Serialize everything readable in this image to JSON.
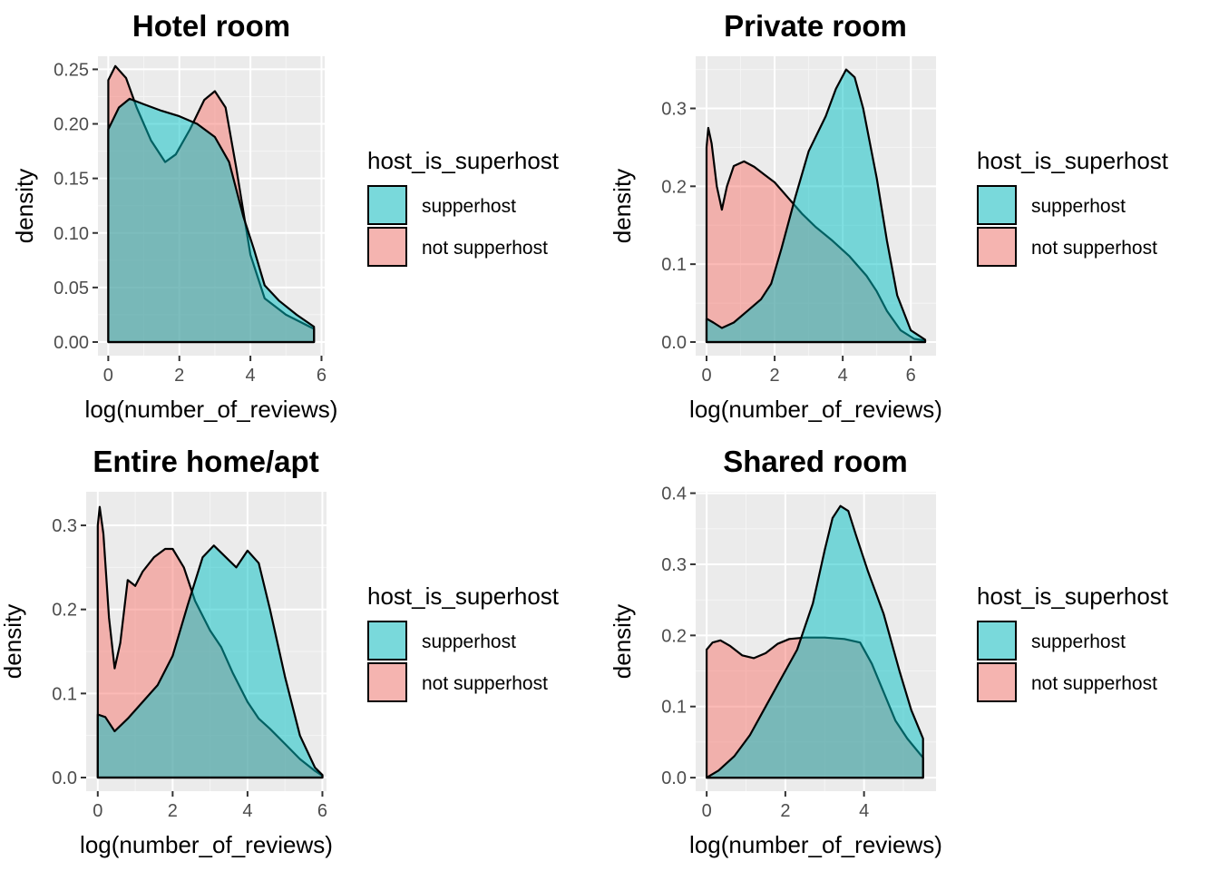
{
  "chart_data": [
    {
      "type": "area",
      "title": "Hotel room",
      "xlabel": "log(number_of_reviews)",
      "ylabel": "density",
      "xlim": [
        -0.29,
        6.09
      ],
      "ylim": [
        -0.0125,
        0.262
      ],
      "xticks": [
        0,
        2,
        4,
        6
      ],
      "yticks": [
        0.0,
        0.05,
        0.1,
        0.15,
        0.2,
        0.25
      ],
      "ytick_labels": [
        "0.00",
        "0.05",
        "0.10",
        "0.15",
        "0.20",
        "0.25"
      ],
      "grid": true,
      "legend": {
        "title": "host_is_superhost",
        "placement": "right",
        "items": [
          {
            "label": "supperhost",
            "color": "#00BFC4"
          },
          {
            "label": "not supperhost",
            "color": "#F8766D"
          }
        ]
      },
      "series": [
        {
          "name": "not supperhost",
          "color": "#F8766D",
          "x": [
            0,
            0.2,
            0.5,
            0.8,
            1.2,
            1.6,
            1.9,
            2.3,
            2.7,
            3.0,
            3.3,
            3.6,
            4.0,
            4.4,
            5.0,
            5.79
          ],
          "y": [
            0.24,
            0.253,
            0.242,
            0.215,
            0.185,
            0.165,
            0.172,
            0.195,
            0.222,
            0.23,
            0.215,
            0.16,
            0.08,
            0.04,
            0.025,
            0.012
          ]
        },
        {
          "name": "supperhost",
          "color": "#00BFC4",
          "x": [
            0,
            0.3,
            0.6,
            1.0,
            1.5,
            2.0,
            2.5,
            3.0,
            3.4,
            3.8,
            4.1,
            4.4,
            4.8,
            5.3,
            5.79
          ],
          "y": [
            0.195,
            0.215,
            0.223,
            0.218,
            0.212,
            0.207,
            0.2,
            0.188,
            0.165,
            0.115,
            0.085,
            0.052,
            0.038,
            0.025,
            0.014
          ]
        }
      ]
    },
    {
      "type": "area",
      "title": "Private room",
      "xlabel": "log(number_of_reviews)",
      "ylabel": "density",
      "xlim": [
        -0.32,
        6.74
      ],
      "ylim": [
        -0.0175,
        0.367
      ],
      "xticks": [
        0,
        2,
        4,
        6
      ],
      "yticks": [
        0.0,
        0.1,
        0.2,
        0.3
      ],
      "ytick_labels": [
        "0.0",
        "0.1",
        "0.2",
        "0.3"
      ],
      "grid": true,
      "legend": {
        "title": "host_is_superhost",
        "placement": "right",
        "items": [
          {
            "label": "supperhost",
            "color": "#00BFC4"
          },
          {
            "label": "not supperhost",
            "color": "#F8766D"
          }
        ]
      },
      "series": [
        {
          "name": "not supperhost",
          "color": "#F8766D",
          "x": [
            0,
            0.05,
            0.15,
            0.3,
            0.45,
            0.6,
            0.8,
            1.1,
            1.4,
            1.7,
            2.0,
            2.4,
            2.8,
            3.2,
            3.7,
            4.2,
            4.7,
            5.0,
            5.3,
            5.7,
            6.1,
            6.42
          ],
          "y": [
            0.25,
            0.275,
            0.255,
            0.2,
            0.17,
            0.2,
            0.226,
            0.232,
            0.225,
            0.215,
            0.205,
            0.185,
            0.165,
            0.148,
            0.13,
            0.11,
            0.085,
            0.065,
            0.04,
            0.015,
            0.004,
            0.002
          ]
        },
        {
          "name": "supperhost",
          "color": "#00BFC4",
          "x": [
            0,
            0.2,
            0.45,
            0.8,
            1.2,
            1.6,
            1.9,
            2.2,
            2.6,
            3.0,
            3.5,
            3.8,
            4.1,
            4.35,
            4.6,
            5.0,
            5.3,
            5.6,
            6.0,
            6.42
          ],
          "y": [
            0.03,
            0.025,
            0.018,
            0.025,
            0.04,
            0.055,
            0.075,
            0.12,
            0.185,
            0.245,
            0.29,
            0.325,
            0.35,
            0.34,
            0.3,
            0.21,
            0.13,
            0.06,
            0.015,
            0.003
          ]
        }
      ]
    },
    {
      "type": "area",
      "title": "Entire home/apt",
      "xlabel": "log(number_of_reviews)",
      "ylabel": "density",
      "xlim": [
        -0.31,
        6.11
      ],
      "ylim": [
        -0.0162,
        0.34
      ],
      "xticks": [
        0,
        2,
        4,
        6
      ],
      "yticks": [
        0.0,
        0.1,
        0.2,
        0.3
      ],
      "ytick_labels": [
        "0.0",
        "0.1",
        "0.2",
        "0.3"
      ],
      "grid": true,
      "legend": {
        "title": "host_is_superhost",
        "placement": "right",
        "items": [
          {
            "label": "supperhost",
            "color": "#00BFC4"
          },
          {
            "label": "not supperhost",
            "color": "#F8766D"
          }
        ]
      },
      "series": [
        {
          "name": "not supperhost",
          "color": "#F8766D",
          "x": [
            0,
            0.05,
            0.15,
            0.3,
            0.45,
            0.6,
            0.8,
            1.0,
            1.2,
            1.5,
            1.8,
            2.0,
            2.3,
            2.6,
            3.0,
            3.3,
            3.6,
            4.0,
            4.3,
            4.6,
            5.0,
            5.4,
            5.8,
            6.0
          ],
          "y": [
            0.3,
            0.322,
            0.29,
            0.19,
            0.13,
            0.16,
            0.235,
            0.228,
            0.245,
            0.262,
            0.272,
            0.272,
            0.25,
            0.21,
            0.175,
            0.155,
            0.125,
            0.09,
            0.07,
            0.058,
            0.04,
            0.022,
            0.008,
            0.002
          ]
        },
        {
          "name": "supperhost",
          "color": "#00BFC4",
          "x": [
            0,
            0.2,
            0.45,
            0.8,
            1.2,
            1.6,
            2.0,
            2.4,
            2.8,
            3.1,
            3.4,
            3.7,
            4.0,
            4.3,
            4.6,
            5.0,
            5.4,
            5.8,
            6.0
          ],
          "y": [
            0.075,
            0.072,
            0.055,
            0.07,
            0.09,
            0.11,
            0.145,
            0.205,
            0.262,
            0.276,
            0.263,
            0.25,
            0.27,
            0.255,
            0.2,
            0.12,
            0.05,
            0.012,
            0.003
          ]
        }
      ]
    },
    {
      "type": "area",
      "title": "Shared room",
      "xlabel": "log(number_of_reviews)",
      "ylabel": "density",
      "xlim": [
        -0.28,
        5.83
      ],
      "ylim": [
        -0.019,
        0.402
      ],
      "xticks": [
        0,
        2,
        4
      ],
      "yticks": [
        0.0,
        0.1,
        0.2,
        0.3,
        0.4
      ],
      "ytick_labels": [
        "0.0",
        "0.1",
        "0.2",
        "0.3",
        "0.4"
      ],
      "grid": true,
      "legend": {
        "title": "host_is_superhost",
        "placement": "right",
        "items": [
          {
            "label": "supperhost",
            "color": "#00BFC4"
          },
          {
            "label": "not supperhost",
            "color": "#F8766D"
          }
        ]
      },
      "series": [
        {
          "name": "not supperhost",
          "color": "#F8766D",
          "x": [
            0,
            0.15,
            0.35,
            0.6,
            0.9,
            1.2,
            1.5,
            1.8,
            2.1,
            2.5,
            3.0,
            3.5,
            3.9,
            4.2,
            4.5,
            4.8,
            5.1,
            5.5
          ],
          "y": [
            0.18,
            0.19,
            0.193,
            0.185,
            0.172,
            0.168,
            0.175,
            0.188,
            0.195,
            0.197,
            0.197,
            0.195,
            0.19,
            0.16,
            0.12,
            0.08,
            0.055,
            0.028
          ]
        },
        {
          "name": "supperhost",
          "color": "#00BFC4",
          "x": [
            0,
            0.3,
            0.7,
            1.1,
            1.5,
            1.9,
            2.3,
            2.7,
            3.0,
            3.2,
            3.4,
            3.6,
            3.8,
            4.1,
            4.5,
            4.9,
            5.2,
            5.5
          ],
          "y": [
            0.0,
            0.01,
            0.03,
            0.06,
            0.1,
            0.14,
            0.18,
            0.245,
            0.32,
            0.365,
            0.382,
            0.375,
            0.34,
            0.29,
            0.23,
            0.15,
            0.095,
            0.055
          ]
        }
      ]
    }
  ]
}
